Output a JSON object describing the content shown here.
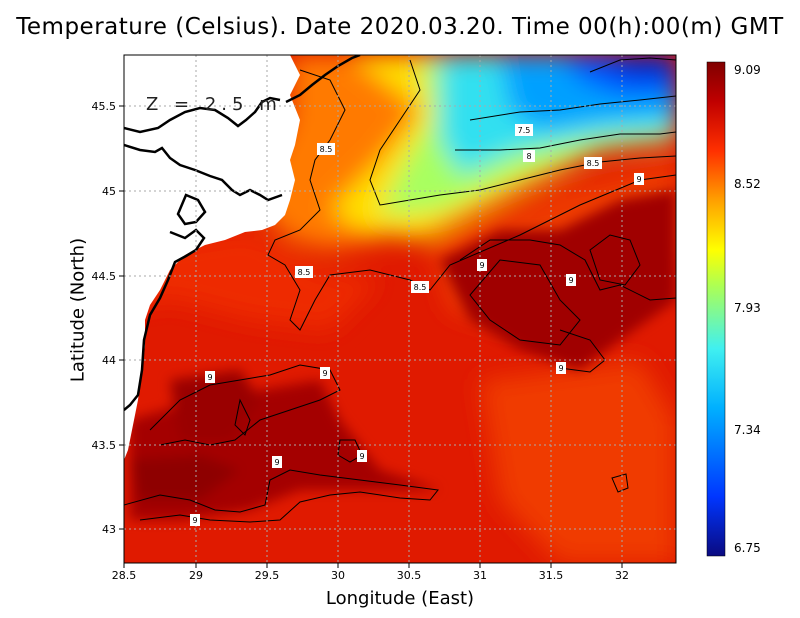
{
  "title": "Temperature (Celsius). Date 2020.03.20. Time 00(h):00(m) GMT",
  "depth_label": "Z = 2.5 m",
  "x_axis": {
    "label": "Longitude (East)",
    "range": [
      28.5,
      32.4
    ],
    "ticks": [
      "28.5",
      "29",
      "29.5",
      "30",
      "30.5",
      "31",
      "31.5",
      "32"
    ]
  },
  "y_axis": {
    "label": "Latitude (North)",
    "range": [
      42.8,
      45.8
    ],
    "ticks": [
      "43",
      "43.5",
      "44",
      "44.5",
      "45",
      "45.5"
    ]
  },
  "colorbar": {
    "min": 6.75,
    "max": 9.09,
    "ticks": [
      "9.09",
      "8.52",
      "7.93",
      "7.34",
      "6.75"
    ],
    "colors": [
      "#0a0a80",
      "#0036ff",
      "#00b0ff",
      "#40f0f0",
      "#b0ff50",
      "#ffff00",
      "#ffa000",
      "#ff3000",
      "#c00000",
      "#800000"
    ]
  },
  "contour_labels": [
    "7.5",
    "8",
    "8.5",
    "8.5",
    "8.5",
    "8.5",
    "9",
    "9",
    "9",
    "9",
    "9",
    "9",
    "9",
    "9",
    "9"
  ],
  "grid": true,
  "land_color": "#ffffff",
  "coast_color": "#000000"
}
